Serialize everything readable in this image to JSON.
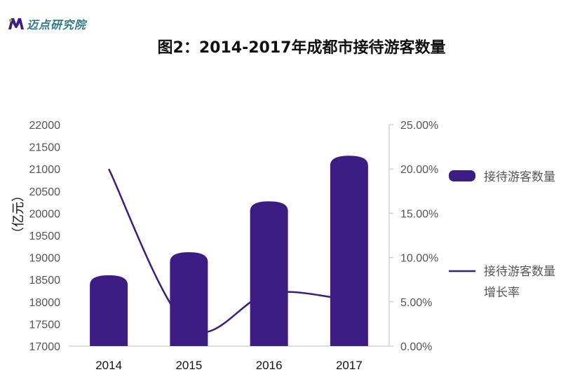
{
  "logo": {
    "text": "迈点研究院",
    "mark": "M"
  },
  "chart_data": {
    "type": "bar",
    "title": "图2：2014-2017年成都市接待游客数量",
    "categories": [
      "2014",
      "2015",
      "2016",
      "2017"
    ],
    "ylabel": "（亿元）",
    "y_left": {
      "min": 17000,
      "max": 22000,
      "ticks": [
        "17000",
        "17500",
        "18000",
        "18500",
        "19000",
        "19500",
        "20000",
        "20500",
        "21000",
        "21500",
        "22000"
      ]
    },
    "y_right": {
      "min": 0,
      "max": 0.25,
      "ticks": [
        "0.00%",
        "5.00%",
        "10.00%",
        "15.00%",
        "20.00%",
        "25.00%"
      ]
    },
    "series": [
      {
        "name": "接待游客数量",
        "type": "bar",
        "axis": "left",
        "values": [
          18600,
          19120,
          20270,
          21300
        ]
      },
      {
        "name": "接待游客数量增长率",
        "type": "line",
        "axis": "right",
        "values": [
          0.2,
          0.021,
          0.06,
          0.052
        ]
      }
    ],
    "legend_position": "right",
    "colors": {
      "bar": "#3b1d84",
      "line": "#3b1d84",
      "axis": "#bfbfbf"
    }
  }
}
